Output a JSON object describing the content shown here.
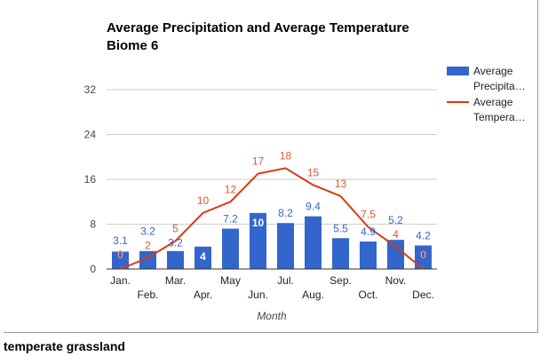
{
  "chart_data": {
    "type": "bar+line",
    "title": [
      "Average Precipitation and Average Temperature",
      "Biome 6"
    ],
    "xlabel": "Month",
    "ylabel": "",
    "categories": [
      "Jan.",
      "Feb.",
      "Mar.",
      "Apr.",
      "May",
      "Jun.",
      "Jul.",
      "Aug.",
      "Sep.",
      "Oct.",
      "Nov.",
      "Dec."
    ],
    "ylim": [
      0,
      32
    ],
    "yticks": [
      0,
      8,
      16,
      24,
      32
    ],
    "grid": true,
    "legend_position": "right",
    "series": [
      {
        "name": "Average Precipita…",
        "type": "bar",
        "color": "#3366cc",
        "values": [
          3.1,
          3.2,
          3.2,
          4,
          7.2,
          10,
          8.2,
          9.4,
          5.5,
          4.9,
          5.2,
          4.2
        ],
        "labels": [
          "3.1",
          "3.2",
          "3.2",
          "4",
          "7.2",
          "10",
          "8.2",
          "9.4",
          "5.5",
          "4.9",
          "5.2",
          "4.2"
        ]
      },
      {
        "name": "Average Tempera…",
        "type": "line",
        "color": "#dc3912",
        "values": [
          0,
          2,
          5,
          10,
          12,
          17,
          18,
          15,
          13,
          7.5,
          4,
          0
        ],
        "labels": [
          "0",
          "2",
          "5",
          "10",
          "12",
          "17",
          "18",
          "15",
          "13",
          "7.5",
          "4",
          "0"
        ]
      }
    ]
  },
  "footer": "temperate grassland"
}
